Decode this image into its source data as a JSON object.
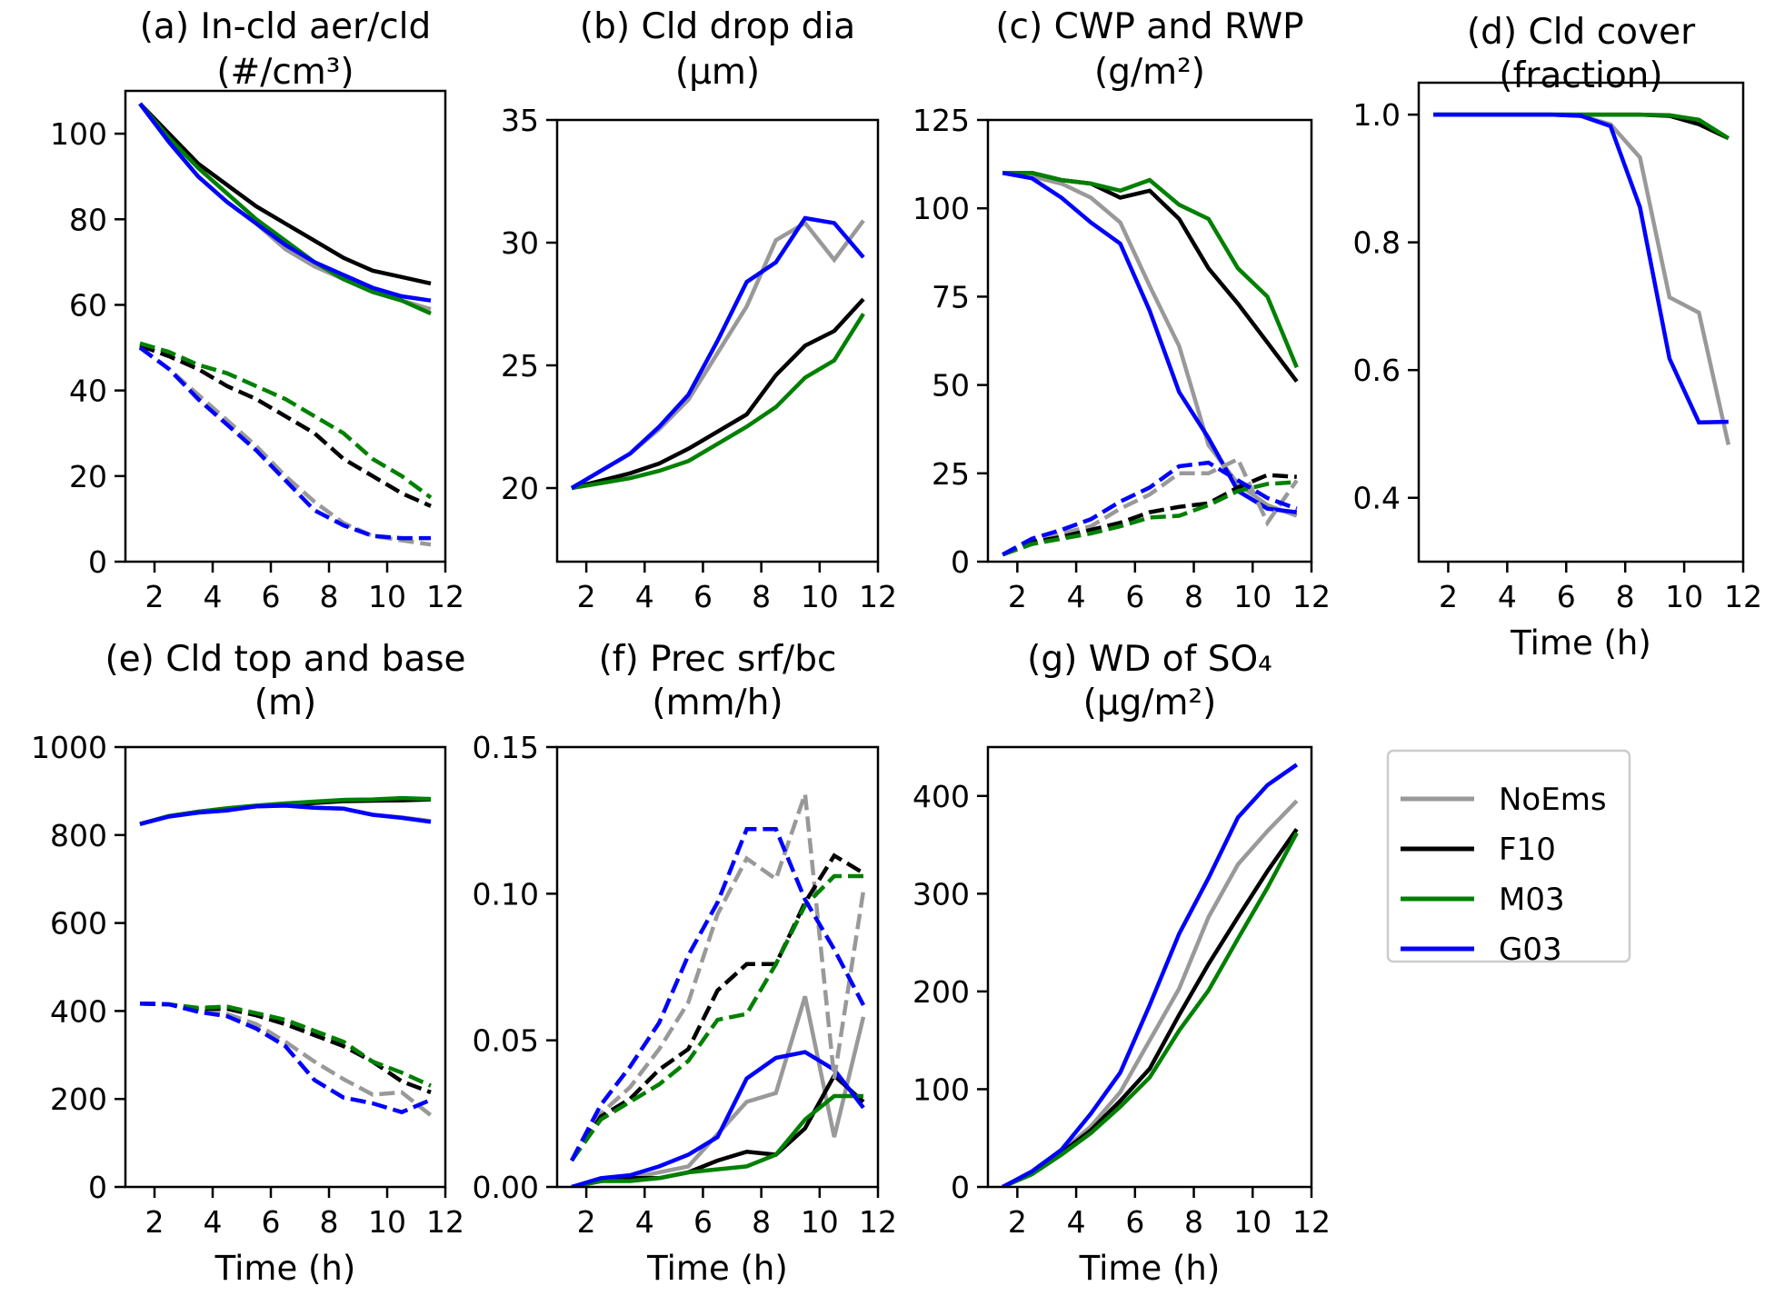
{
  "figure": {
    "legend": {
      "placement": "lower-right",
      "entries": [
        {
          "name": "NoEms",
          "color": "#999999"
        },
        {
          "name": "F10",
          "color": "#000000"
        },
        {
          "name": "M03",
          "color": "#008000"
        },
        {
          "name": "G03",
          "color": "#0000ff"
        }
      ]
    },
    "line_style_note": "solid = first quantity, dashed = second quantity"
  },
  "chart_data": [
    {
      "id": "a",
      "type": "line",
      "title": "(a) In-cld aer/cld",
      "subtitle": "(#/cm³)",
      "xlabel": "",
      "ylabel": "",
      "xlim": [
        1,
        12
      ],
      "ylim": [
        0,
        110
      ],
      "xticks": [
        2,
        4,
        6,
        8,
        10,
        12
      ],
      "yticks": [
        0,
        20,
        40,
        60,
        80,
        100
      ],
      "x": [
        1.5,
        2.5,
        3.5,
        4.5,
        5.5,
        6.5,
        7.5,
        8.5,
        9.5,
        10.5,
        11.5
      ],
      "series": [
        {
          "name": "NoEms",
          "style": "solid",
          "values": [
            107,
            98,
            90,
            84,
            79,
            73,
            69,
            66,
            63,
            61,
            59
          ]
        },
        {
          "name": "F10",
          "style": "solid",
          "values": [
            107,
            100,
            93,
            88,
            83,
            79,
            75,
            71,
            68,
            66.5,
            65
          ]
        },
        {
          "name": "M03",
          "style": "solid",
          "values": [
            107,
            99,
            92,
            86,
            80,
            75,
            70,
            66,
            63,
            61,
            58
          ]
        },
        {
          "name": "G03",
          "style": "solid",
          "values": [
            107,
            98,
            90,
            84,
            79,
            74,
            70,
            67,
            64,
            62,
            61
          ]
        },
        {
          "name": "NoEms",
          "style": "dashed",
          "values": [
            50,
            45,
            39,
            33,
            27,
            20,
            14,
            9,
            6,
            5,
            4
          ]
        },
        {
          "name": "F10",
          "style": "dashed",
          "values": [
            50.5,
            48,
            45,
            41,
            38,
            34,
            30,
            24,
            20,
            16,
            13
          ]
        },
        {
          "name": "M03",
          "style": "dashed",
          "values": [
            51,
            49,
            46,
            44,
            41,
            38,
            34,
            30,
            24,
            20,
            15
          ]
        },
        {
          "name": "G03",
          "style": "dashed",
          "values": [
            50,
            45,
            38,
            32,
            26,
            19,
            12,
            8.5,
            6,
            5.5,
            5.5
          ]
        }
      ]
    },
    {
      "id": "b",
      "type": "line",
      "title": "(b) Cld drop dia",
      "subtitle": "(μm)",
      "xlabel": "",
      "ylabel": "",
      "xlim": [
        1,
        12
      ],
      "ylim": [
        17,
        35
      ],
      "xticks": [
        2,
        4,
        6,
        8,
        10,
        12
      ],
      "yticks": [
        20,
        25,
        30,
        35
      ],
      "x": [
        1.5,
        2.5,
        3.5,
        4.5,
        5.5,
        6.5,
        7.5,
        8.5,
        9.5,
        10.5,
        11.5
      ],
      "series": [
        {
          "name": "NoEms",
          "style": "solid",
          "values": [
            20,
            20.7,
            21.4,
            22.4,
            23.6,
            25.5,
            27.4,
            30.1,
            30.8,
            29.3,
            30.9
          ]
        },
        {
          "name": "F10",
          "style": "solid",
          "values": [
            20,
            20.3,
            20.6,
            21,
            21.6,
            22.3,
            23,
            24.6,
            25.8,
            26.4,
            27.7
          ]
        },
        {
          "name": "M03",
          "style": "solid",
          "values": [
            20,
            20.2,
            20.4,
            20.7,
            21.1,
            21.8,
            22.5,
            23.3,
            24.5,
            25.2,
            27.1
          ]
        },
        {
          "name": "G03",
          "style": "solid",
          "values": [
            20,
            20.7,
            21.4,
            22.5,
            23.8,
            26,
            28.4,
            29.2,
            31,
            30.8,
            29.4
          ]
        }
      ]
    },
    {
      "id": "c",
      "type": "line",
      "title": "(c) CWP and RWP",
      "subtitle": "(g/m²)",
      "xlabel": "",
      "ylabel": "",
      "xlim": [
        1,
        12
      ],
      "ylim": [
        0,
        125
      ],
      "xticks": [
        2,
        4,
        6,
        8,
        10,
        12
      ],
      "yticks": [
        0,
        25,
        50,
        75,
        100,
        125
      ],
      "x": [
        1.5,
        2.5,
        3.5,
        4.5,
        5.5,
        6.5,
        7.5,
        8.5,
        9.5,
        10.5,
        11.5
      ],
      "series": [
        {
          "name": "NoEms",
          "style": "solid",
          "values": [
            110,
            109,
            107,
            103,
            96,
            78,
            61,
            33,
            22,
            16,
            13
          ]
        },
        {
          "name": "F10",
          "style": "solid",
          "values": [
            110,
            110,
            108,
            107,
            103,
            105,
            97,
            83,
            73,
            62,
            51
          ]
        },
        {
          "name": "M03",
          "style": "solid",
          "values": [
            110,
            110,
            108,
            107,
            105,
            108,
            101,
            97,
            83,
            75,
            55
          ]
        },
        {
          "name": "G03",
          "style": "solid",
          "values": [
            110,
            108.5,
            103,
            96,
            90,
            71,
            48,
            35,
            20,
            15,
            14
          ]
        },
        {
          "name": "NoEms",
          "style": "dashed",
          "values": [
            2,
            5.5,
            8,
            10,
            15,
            19,
            25,
            25,
            29,
            11,
            23
          ]
        },
        {
          "name": "F10",
          "style": "dashed",
          "values": [
            2,
            5.5,
            7,
            9,
            11,
            14,
            15.5,
            16.5,
            21,
            24.5,
            24
          ]
        },
        {
          "name": "M03",
          "style": "dashed",
          "values": [
            2,
            5,
            6.5,
            8,
            10,
            12.5,
            13,
            16,
            20,
            22,
            22.5
          ]
        },
        {
          "name": "G03",
          "style": "dashed",
          "values": [
            2,
            6.5,
            9,
            12,
            17,
            21,
            27,
            28,
            23,
            18,
            15
          ]
        }
      ]
    },
    {
      "id": "d",
      "type": "line",
      "title": "(d) Cld cover",
      "subtitle": "(fraction)",
      "xlabel": "Time (h)",
      "ylabel": "",
      "xlim": [
        1,
        12
      ],
      "ylim": [
        0.3,
        1.05
      ],
      "xticks": [
        2,
        4,
        6,
        8,
        10,
        12
      ],
      "yticks": [
        0.4,
        0.6,
        0.8,
        1.0
      ],
      "ytick_labels": [
        "0.4",
        "0.6",
        "0.8",
        "1.0"
      ],
      "x": [
        1.5,
        2.5,
        3.5,
        4.5,
        5.5,
        6.5,
        7.5,
        8.5,
        9.5,
        10.5,
        11.5
      ],
      "series": [
        {
          "name": "NoEms",
          "style": "solid",
          "values": [
            1.0,
            1.0,
            1.0,
            1.0,
            1.0,
            0.998,
            0.985,
            0.933,
            0.714,
            0.69,
            0.483
          ]
        },
        {
          "name": "F10",
          "style": "solid",
          "values": [
            1.0,
            1.0,
            1.0,
            1.0,
            1.0,
            1.0,
            1.0,
            1.0,
            0.998,
            0.985,
            0.963
          ]
        },
        {
          "name": "M03",
          "style": "solid",
          "values": [
            1.0,
            1.0,
            1.0,
            1.0,
            1.0,
            1.0,
            1.0,
            1.0,
            0.999,
            0.992,
            0.963
          ]
        },
        {
          "name": "G03",
          "style": "solid",
          "values": [
            1.0,
            1.0,
            1.0,
            1.0,
            1.0,
            0.998,
            0.982,
            0.855,
            0.618,
            0.518,
            0.519
          ]
        }
      ]
    },
    {
      "id": "e",
      "type": "line",
      "title": "(e) Cld top and base",
      "subtitle": "(m)",
      "xlabel": "Time (h)",
      "ylabel": "",
      "xlim": [
        1,
        12
      ],
      "ylim": [
        0,
        1000
      ],
      "xticks": [
        2,
        4,
        6,
        8,
        10,
        12
      ],
      "yticks": [
        0,
        200,
        400,
        600,
        800,
        1000
      ],
      "x": [
        1.5,
        2.5,
        3.5,
        4.5,
        5.5,
        6.5,
        7.5,
        8.5,
        9.5,
        10.5,
        11.5
      ],
      "series": [
        {
          "name": "NoEms",
          "style": "solid",
          "values": [
            825,
            843,
            852,
            857,
            865,
            867,
            862,
            860,
            846,
            840,
            832
          ]
        },
        {
          "name": "F10",
          "style": "solid",
          "values": [
            825,
            843,
            853,
            860,
            866,
            870,
            873,
            877,
            878,
            879,
            881
          ]
        },
        {
          "name": "M03",
          "style": "solid",
          "values": [
            825,
            843,
            853,
            861,
            867,
            872,
            876,
            880,
            881,
            884,
            882
          ]
        },
        {
          "name": "G03",
          "style": "solid",
          "values": [
            825,
            842,
            851,
            856,
            865,
            867,
            862,
            860,
            846,
            839,
            830
          ]
        },
        {
          "name": "NoEms",
          "style": "dashed",
          "values": [
            417,
            415,
            400,
            393,
            370,
            330,
            285,
            245,
            210,
            215,
            163
          ]
        },
        {
          "name": "F10",
          "style": "dashed",
          "values": [
            417,
            415,
            405,
            405,
            390,
            370,
            345,
            320,
            285,
            240,
            215
          ]
        },
        {
          "name": "M03",
          "style": "dashed",
          "values": [
            417,
            415,
            407,
            410,
            395,
            380,
            355,
            330,
            285,
            260,
            230
          ]
        },
        {
          "name": "G03",
          "style": "dashed",
          "values": [
            417,
            415,
            398,
            388,
            360,
            320,
            243,
            203,
            190,
            170,
            198
          ]
        }
      ]
    },
    {
      "id": "f",
      "type": "line",
      "title": "(f) Prec srf/bc",
      "subtitle": "(mm/h)",
      "xlabel": "Time (h)",
      "ylabel": "",
      "xlim": [
        1,
        12
      ],
      "ylim": [
        0,
        0.15
      ],
      "xticks": [
        2,
        4,
        6,
        8,
        10,
        12
      ],
      "yticks": [
        0.0,
        0.05,
        0.1,
        0.15
      ],
      "ytick_labels": [
        "0.00",
        "0.05",
        "0.10",
        "0.15"
      ],
      "x": [
        1.5,
        2.5,
        3.5,
        4.5,
        5.5,
        6.5,
        7.5,
        8.5,
        9.5,
        10.5,
        11.5
      ],
      "series": [
        {
          "name": "NoEms",
          "style": "solid",
          "values": [
            0.0,
            0.002,
            0.003,
            0.005,
            0.007,
            0.018,
            0.029,
            0.032,
            0.065,
            0.017,
            0.058
          ]
        },
        {
          "name": "F10",
          "style": "solid",
          "values": [
            0.0,
            0.002,
            0.003,
            0.003,
            0.005,
            0.009,
            0.012,
            0.011,
            0.02,
            0.038,
            0.029
          ]
        },
        {
          "name": "M03",
          "style": "solid",
          "values": [
            0.0,
            0.002,
            0.002,
            0.003,
            0.005,
            0.006,
            0.007,
            0.011,
            0.023,
            0.031,
            0.031
          ]
        },
        {
          "name": "G03",
          "style": "solid",
          "values": [
            0.0,
            0.003,
            0.004,
            0.007,
            0.011,
            0.017,
            0.037,
            0.044,
            0.046,
            0.04,
            0.027
          ]
        },
        {
          "name": "NoEms",
          "style": "dashed",
          "values": [
            0.009,
            0.025,
            0.034,
            0.047,
            0.063,
            0.093,
            0.112,
            0.105,
            0.134,
            0.037,
            0.101
          ]
        },
        {
          "name": "F10",
          "style": "dashed",
          "values": [
            0.009,
            0.024,
            0.03,
            0.04,
            0.047,
            0.067,
            0.076,
            0.076,
            0.097,
            0.113,
            0.107
          ]
        },
        {
          "name": "M03",
          "style": "dashed",
          "values": [
            0.009,
            0.023,
            0.029,
            0.035,
            0.043,
            0.057,
            0.059,
            0.076,
            0.096,
            0.106,
            0.106
          ]
        },
        {
          "name": "G03",
          "style": "dashed",
          "values": [
            0.009,
            0.028,
            0.041,
            0.056,
            0.079,
            0.097,
            0.122,
            0.122,
            0.098,
            0.081,
            0.062
          ]
        }
      ]
    },
    {
      "id": "g",
      "type": "line",
      "title": "(g) WD of SO₄",
      "subtitle": "(μg/m²)",
      "xlabel": "Time (h)",
      "ylabel": "",
      "xlim": [
        1,
        12
      ],
      "ylim": [
        0,
        450
      ],
      "xticks": [
        2,
        4,
        6,
        8,
        10,
        12
      ],
      "yticks": [
        0,
        100,
        200,
        300,
        400
      ],
      "x": [
        1.5,
        2.5,
        3.5,
        4.5,
        5.5,
        6.5,
        7.5,
        8.5,
        9.5,
        10.5,
        11.5
      ],
      "series": [
        {
          "name": "NoEms",
          "style": "solid",
          "values": [
            0,
            14,
            36,
            62,
            97,
            150,
            203,
            276,
            330,
            364,
            395
          ]
        },
        {
          "name": "F10",
          "style": "solid",
          "values": [
            0,
            14,
            35,
            58,
            88,
            121,
            176,
            228,
            276,
            323,
            366
          ]
        },
        {
          "name": "M03",
          "style": "solid",
          "values": [
            0,
            13,
            33,
            55,
            82,
            112,
            160,
            201,
            254,
            306,
            362
          ]
        },
        {
          "name": "G03",
          "style": "solid",
          "values": [
            0,
            16,
            38,
            75,
            117,
            186,
            259,
            316,
            378,
            411,
            432
          ]
        }
      ]
    }
  ]
}
